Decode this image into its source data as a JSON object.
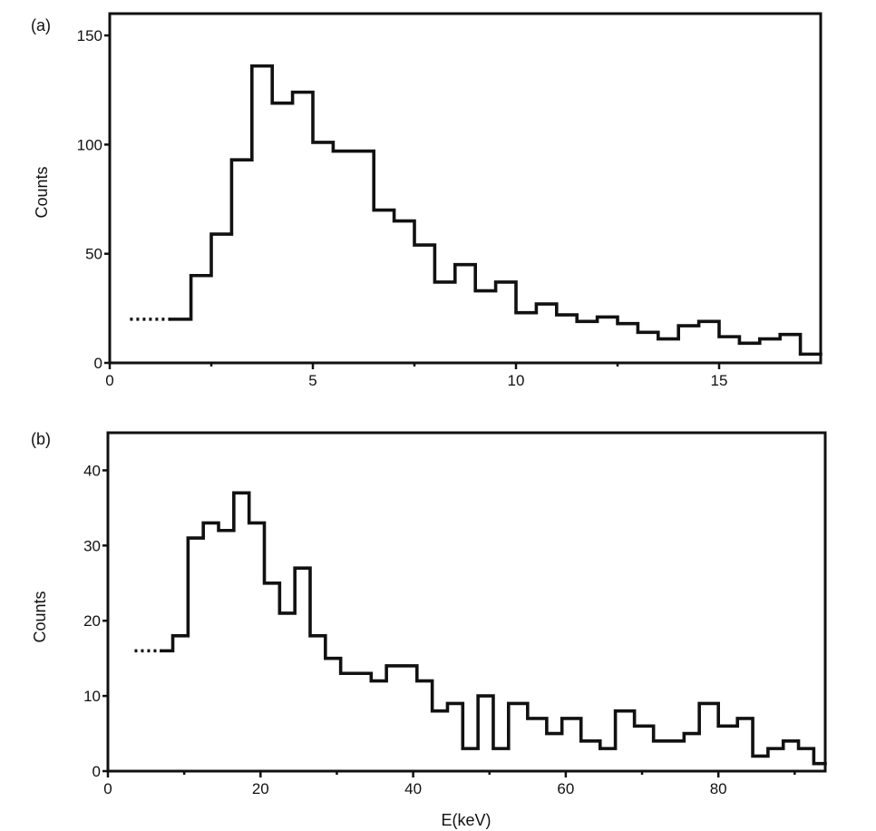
{
  "chart_data": [
    {
      "type": "line",
      "panel_label": "(a)",
      "xlabel": "",
      "ylabel": "Counts",
      "xlim": [
        0,
        17.5
      ],
      "ylim": [
        0,
        160
      ],
      "xticks": [
        0,
        5,
        10,
        15
      ],
      "yticks": [
        0,
        50,
        100,
        150
      ],
      "grid": false,
      "series": [
        {
          "style": "step",
          "edges": [
            1.5,
            2.0,
            2.5,
            3.0,
            3.5,
            4.0,
            4.5,
            5.0,
            5.5,
            6.5,
            7.0,
            7.5,
            8.0,
            8.5,
            9.0,
            9.5,
            10.0,
            10.5,
            11.0,
            11.5,
            12.0,
            12.5,
            13.0,
            13.5,
            14.0,
            14.5,
            15.0,
            15.5,
            16.0,
            16.5,
            17.0,
            17.5
          ],
          "values": [
            20,
            40,
            59,
            93,
            136,
            119,
            124,
            101,
            97,
            70,
            65,
            54,
            37,
            45,
            33,
            37,
            23,
            27,
            22,
            19,
            21,
            18,
            14,
            11,
            17,
            19,
            12,
            9,
            11,
            13,
            4
          ]
        }
      ],
      "dotted_lead": {
        "x": [
          0.5,
          1.5
        ],
        "y": 20
      }
    },
    {
      "type": "line",
      "panel_label": "(b)",
      "xlabel": "E(keV)",
      "ylabel": "Counts",
      "xlim": [
        0,
        94
      ],
      "ylim": [
        0,
        45
      ],
      "xticks": [
        0,
        20,
        40,
        60,
        80
      ],
      "yticks": [
        0,
        10,
        20,
        30,
        40
      ],
      "grid": false,
      "series": [
        {
          "style": "step",
          "edges": [
            7,
            8.5,
            10.5,
            12.5,
            14.5,
            16.5,
            18.5,
            20.5,
            22.5,
            24.5,
            26.5,
            28.5,
            30.5,
            32.5,
            34.5,
            36.5,
            40.5,
            42.5,
            44.5,
            46.5,
            48.5,
            50.5,
            52.5,
            55,
            57.5,
            59.5,
            62,
            64.5,
            66.5,
            69,
            71.5,
            75.5,
            77.5,
            80,
            82.5,
            84.5,
            86.5,
            88.5,
            90.5,
            92.5,
            94
          ],
          "values": [
            16,
            18,
            31,
            33,
            32,
            37,
            33,
            25,
            21,
            27,
            18,
            15,
            13,
            13,
            12,
            14,
            12,
            8,
            9,
            3,
            10,
            3,
            9,
            7,
            5,
            7,
            4,
            3,
            8,
            6,
            4,
            5,
            9,
            6,
            7,
            2,
            3,
            4,
            3,
            1
          ]
        }
      ],
      "dotted_lead": {
        "x": [
          3.5,
          7
        ],
        "y": 16
      }
    }
  ]
}
